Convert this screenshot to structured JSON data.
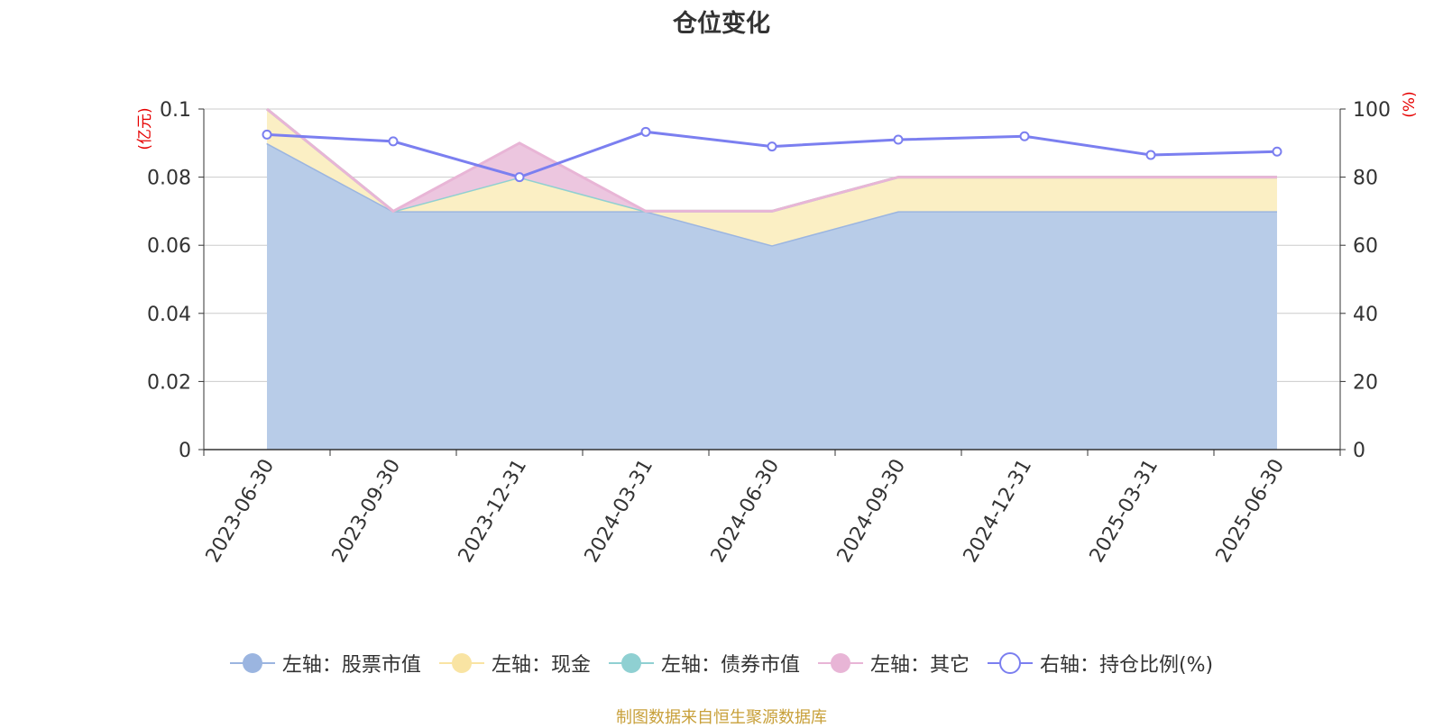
{
  "title": "仓位变化",
  "left_unit": "(亿元)",
  "right_unit": "(%)",
  "source_note": "制图数据来自恒生聚源数据库",
  "chart_data": {
    "type": "area",
    "categories": [
      "2023-06-30",
      "2023-09-30",
      "2023-12-31",
      "2024-03-31",
      "2024-06-30",
      "2024-09-30",
      "2024-12-31",
      "2025-03-31",
      "2025-06-30"
    ],
    "left_axis": {
      "min": 0,
      "max": 0.1,
      "ticks": [
        "0",
        "0.02",
        "0.04",
        "0.06",
        "0.08",
        "0.1"
      ],
      "unit": "(亿元)"
    },
    "right_axis": {
      "min": 0,
      "max": 100,
      "ticks": [
        "0",
        "20",
        "40",
        "60",
        "80",
        "100"
      ],
      "unit": "(%)"
    },
    "grid": true,
    "legend_position": "bottom",
    "stacked_series": [
      {
        "name": "左轴：股票市值",
        "values": [
          0.09,
          0.07,
          0.07,
          0.07,
          0.06,
          0.07,
          0.07,
          0.07,
          0.07
        ],
        "fill": "#b8cce8",
        "stroke": "#9bb5e0",
        "swatch": "#9bb5e0"
      },
      {
        "name": "左轴：现金",
        "values": [
          0.01,
          0.0,
          0.01,
          0.0,
          0.01,
          0.01,
          0.01,
          0.01,
          0.01
        ],
        "fill": "#fbefc4",
        "stroke": "#f7e3a0",
        "swatch": "#f9e4a3"
      },
      {
        "name": "左轴：债券市值",
        "values": [
          0,
          0,
          0,
          0,
          0,
          0,
          0,
          0,
          0
        ],
        "fill": "#8fd0d2",
        "stroke": "#8fd0d2",
        "swatch": "#8fd0d2"
      },
      {
        "name": "左轴：其它",
        "values": [
          0.0,
          0.0,
          0.01,
          0.0,
          0.0,
          0.0,
          0.0,
          0.0,
          0.0
        ],
        "fill": "#ecc6df",
        "stroke": "#e8b5d6",
        "swatch": "#e8b5d6"
      }
    ],
    "line_series": {
      "name": "右轴：持仓比例(%)",
      "axis": "right",
      "values": [
        92.5,
        90.5,
        80.0,
        93.3,
        89.0,
        91.0,
        92.0,
        86.5,
        87.5
      ],
      "color": "#7b7ff0"
    }
  }
}
